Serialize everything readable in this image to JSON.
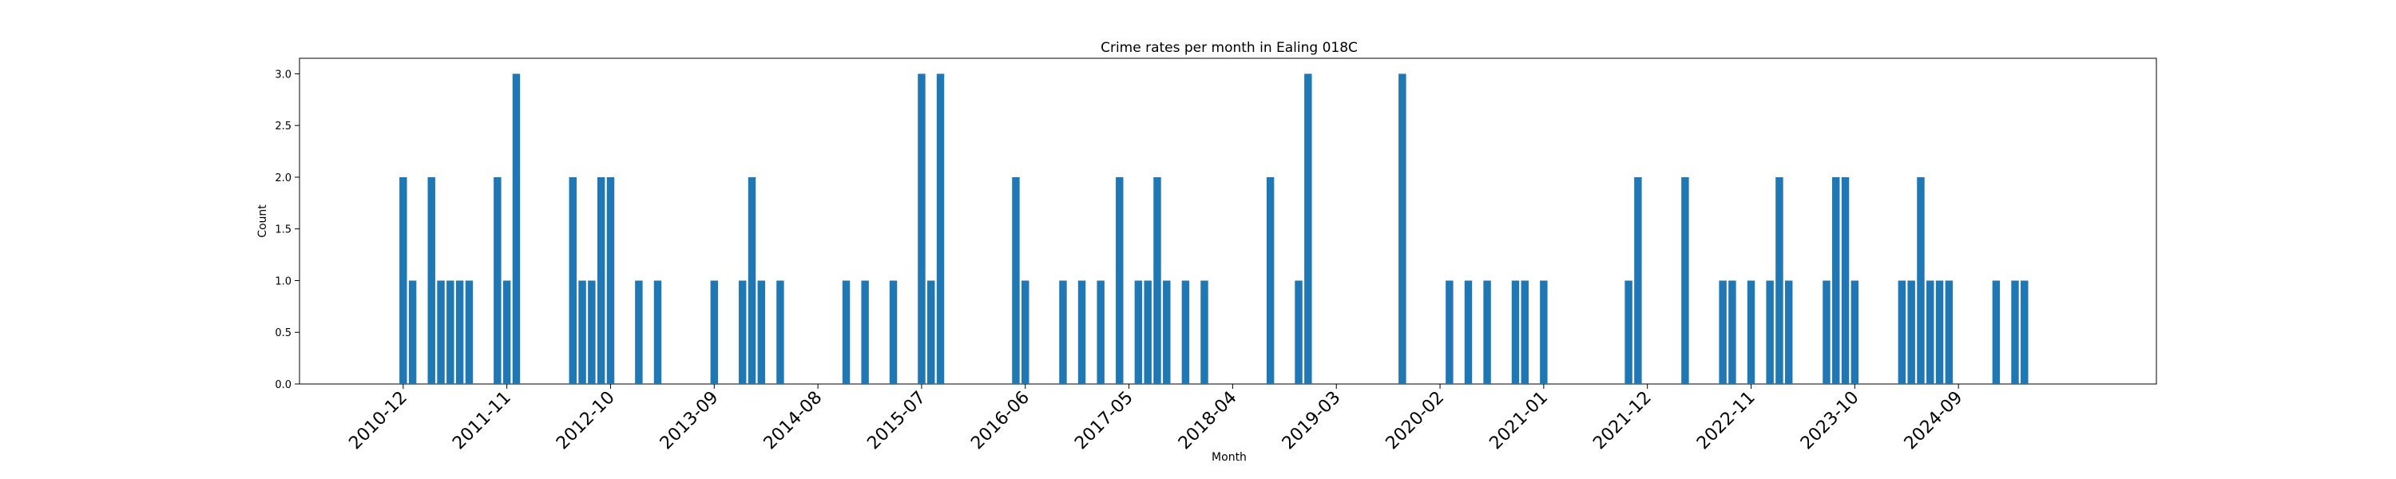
{
  "chart_data": {
    "type": "bar",
    "title": "Crime rates per month in Ealing 018C",
    "xlabel": "Month",
    "ylabel": "Count",
    "ylim": [
      0,
      3.15
    ],
    "y_ticks": [
      "0.0",
      "0.5",
      "1.0",
      "1.5",
      "2.0",
      "2.5",
      "3.0"
    ],
    "x_range": [
      "2010-01",
      "2026-06"
    ],
    "x_ticks": [
      "2010-12",
      "2011-11",
      "2012-10",
      "2013-09",
      "2014-08",
      "2015-07",
      "2016-06",
      "2017-05",
      "2018-04",
      "2019-03",
      "2020-02",
      "2021-01",
      "2021-12",
      "2022-11",
      "2023-10",
      "2024-09"
    ],
    "grid": false,
    "legend": "none",
    "bar_color": "#1f77b4",
    "points": [
      {
        "x": "2010-12",
        "y": 2
      },
      {
        "x": "2011-01",
        "y": 1
      },
      {
        "x": "2011-03",
        "y": 2
      },
      {
        "x": "2011-04",
        "y": 1
      },
      {
        "x": "2011-05",
        "y": 1
      },
      {
        "x": "2011-06",
        "y": 1
      },
      {
        "x": "2011-07",
        "y": 1
      },
      {
        "x": "2011-10",
        "y": 2
      },
      {
        "x": "2011-11",
        "y": 1
      },
      {
        "x": "2011-12",
        "y": 3
      },
      {
        "x": "2012-06",
        "y": 2
      },
      {
        "x": "2012-07",
        "y": 1
      },
      {
        "x": "2012-08",
        "y": 1
      },
      {
        "x": "2012-09",
        "y": 2
      },
      {
        "x": "2012-10",
        "y": 2
      },
      {
        "x": "2013-01",
        "y": 1
      },
      {
        "x": "2013-03",
        "y": 1
      },
      {
        "x": "2013-09",
        "y": 1
      },
      {
        "x": "2013-12",
        "y": 1
      },
      {
        "x": "2014-01",
        "y": 2
      },
      {
        "x": "2014-02",
        "y": 1
      },
      {
        "x": "2014-04",
        "y": 1
      },
      {
        "x": "2014-11",
        "y": 1
      },
      {
        "x": "2015-01",
        "y": 1
      },
      {
        "x": "2015-04",
        "y": 1
      },
      {
        "x": "2015-07",
        "y": 3
      },
      {
        "x": "2015-08",
        "y": 1
      },
      {
        "x": "2015-09",
        "y": 3
      },
      {
        "x": "2016-05",
        "y": 2
      },
      {
        "x": "2016-06",
        "y": 1
      },
      {
        "x": "2016-10",
        "y": 1
      },
      {
        "x": "2016-12",
        "y": 1
      },
      {
        "x": "2017-02",
        "y": 1
      },
      {
        "x": "2017-04",
        "y": 2
      },
      {
        "x": "2017-06",
        "y": 1
      },
      {
        "x": "2017-07",
        "y": 1
      },
      {
        "x": "2017-08",
        "y": 2
      },
      {
        "x": "2017-09",
        "y": 1
      },
      {
        "x": "2017-11",
        "y": 1
      },
      {
        "x": "2018-01",
        "y": 1
      },
      {
        "x": "2018-08",
        "y": 2
      },
      {
        "x": "2018-11",
        "y": 1
      },
      {
        "x": "2018-12",
        "y": 3
      },
      {
        "x": "2019-10",
        "y": 3
      },
      {
        "x": "2020-03",
        "y": 1
      },
      {
        "x": "2020-05",
        "y": 1
      },
      {
        "x": "2020-07",
        "y": 1
      },
      {
        "x": "2020-10",
        "y": 1
      },
      {
        "x": "2020-11",
        "y": 1
      },
      {
        "x": "2021-01",
        "y": 1
      },
      {
        "x": "2021-10",
        "y": 1
      },
      {
        "x": "2021-11",
        "y": 2
      },
      {
        "x": "2022-04",
        "y": 2
      },
      {
        "x": "2022-08",
        "y": 1
      },
      {
        "x": "2022-09",
        "y": 1
      },
      {
        "x": "2022-11",
        "y": 1
      },
      {
        "x": "2023-01",
        "y": 1
      },
      {
        "x": "2023-02",
        "y": 2
      },
      {
        "x": "2023-03",
        "y": 1
      },
      {
        "x": "2023-07",
        "y": 1
      },
      {
        "x": "2023-08",
        "y": 2
      },
      {
        "x": "2023-09",
        "y": 2
      },
      {
        "x": "2023-10",
        "y": 1
      },
      {
        "x": "2024-03",
        "y": 1
      },
      {
        "x": "2024-04",
        "y": 1
      },
      {
        "x": "2024-05",
        "y": 2
      },
      {
        "x": "2024-06",
        "y": 1
      },
      {
        "x": "2024-07",
        "y": 1
      },
      {
        "x": "2024-08",
        "y": 1
      },
      {
        "x": "2025-01",
        "y": 1
      },
      {
        "x": "2025-03",
        "y": 1
      },
      {
        "x": "2025-04",
        "y": 1
      }
    ]
  }
}
